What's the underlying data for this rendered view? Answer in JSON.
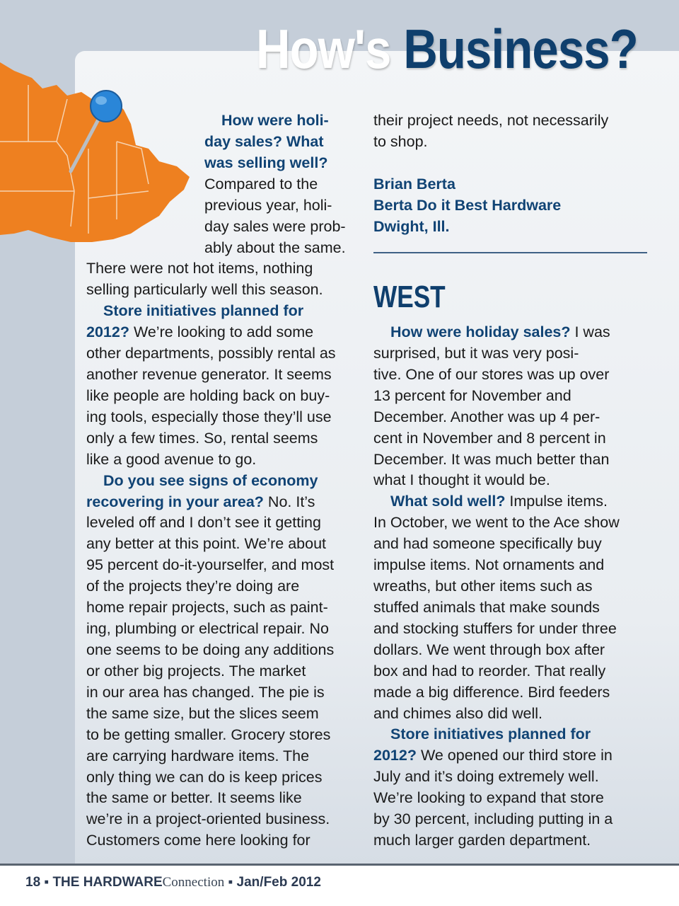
{
  "title": {
    "part1": "How's",
    "part2": "Business?"
  },
  "colors": {
    "accent": "#104374",
    "map": "#ee8020",
    "pin": "#2a86d8",
    "background": "#c5ced9"
  },
  "map_icon": "midwest-map-with-pin",
  "left_column": [
    {
      "indent": 2,
      "segs": [
        {
          "t": "How were holi-",
          "q": true
        }
      ]
    },
    {
      "indent": 1,
      "segs": [
        {
          "t": "day sales? What",
          "q": true
        }
      ]
    },
    {
      "indent": 1,
      "segs": [
        {
          "t": "was selling well?",
          "q": true
        }
      ]
    },
    {
      "indent": 1,
      "segs": [
        {
          "t": "Compared to the"
        }
      ]
    },
    {
      "indent": 1,
      "segs": [
        {
          "t": "previous year, holi-"
        }
      ]
    },
    {
      "indent": 1,
      "segs": [
        {
          "t": "day sales were prob-"
        }
      ]
    },
    {
      "indent": 1,
      "segs": [
        {
          "t": "ably about the same."
        }
      ]
    },
    {
      "segs": [
        {
          "t": "There were not hot items, nothing"
        }
      ]
    },
    {
      "segs": [
        {
          "t": "selling particularly well this season."
        }
      ]
    },
    {
      "indent": 3,
      "segs": [
        {
          "t": "Store initiatives planned for",
          "q": true
        }
      ]
    },
    {
      "segs": [
        {
          "t": "2012?",
          "q": true
        },
        {
          "t": " We’re looking to add some"
        }
      ]
    },
    {
      "segs": [
        {
          "t": "other departments, possibly rental as"
        }
      ]
    },
    {
      "segs": [
        {
          "t": "another revenue generator. It seems"
        }
      ]
    },
    {
      "segs": [
        {
          "t": "like people are holding back on buy-"
        }
      ]
    },
    {
      "segs": [
        {
          "t": "ing tools, especially those they’ll use"
        }
      ]
    },
    {
      "segs": [
        {
          "t": "only a few times. So, rental seems"
        }
      ]
    },
    {
      "segs": [
        {
          "t": "like a good avenue to go."
        }
      ]
    },
    {
      "indent": 3,
      "segs": [
        {
          "t": "Do you see signs of economy",
          "q": true
        }
      ]
    },
    {
      "segs": [
        {
          "t": "recovering in your area?",
          "q": true
        },
        {
          "t": " No. It’s"
        }
      ]
    },
    {
      "segs": [
        {
          "t": "leveled off and I don’t see it getting"
        }
      ]
    },
    {
      "segs": [
        {
          "t": "any better at this point. We’re about"
        }
      ]
    },
    {
      "segs": [
        {
          "t": "95 percent do-it-yourselfer, and most"
        }
      ]
    },
    {
      "segs": [
        {
          "t": "of the projects they’re doing are"
        }
      ]
    },
    {
      "segs": [
        {
          "t": "home repair projects, such as paint-"
        }
      ]
    },
    {
      "segs": [
        {
          "t": "ing, plumbing or electrical repair. No"
        }
      ]
    },
    {
      "segs": [
        {
          "t": "one seems to be doing any additions"
        }
      ]
    },
    {
      "segs": [
        {
          "t": "or other big projects. The market"
        }
      ]
    },
    {
      "segs": [
        {
          "t": "in our area has changed. The pie is"
        }
      ]
    },
    {
      "segs": [
        {
          "t": "the same size, but the slices seem"
        }
      ]
    },
    {
      "segs": [
        {
          "t": "to be getting smaller. Grocery stores"
        }
      ]
    },
    {
      "segs": [
        {
          "t": "are carrying hardware items. The"
        }
      ]
    },
    {
      "segs": [
        {
          "t": "only thing we can do is keep prices"
        }
      ]
    },
    {
      "segs": [
        {
          "t": "the same or better. It seems like"
        }
      ]
    },
    {
      "segs": [
        {
          "t": "we’re in a project-oriented business."
        }
      ]
    },
    {
      "segs": [
        {
          "t": "Customers come here looking for"
        }
      ]
    }
  ],
  "right_top": [
    {
      "segs": [
        {
          "t": "their project needs, not necessarily"
        }
      ]
    },
    {
      "segs": [
        {
          "t": "to shop."
        }
      ]
    }
  ],
  "signature": [
    {
      "segs": [
        {
          "t": "Brian Berta",
          "q": true
        }
      ]
    },
    {
      "segs": [
        {
          "t": "Berta Do it Best Hardware",
          "q": true
        }
      ]
    },
    {
      "segs": [
        {
          "t": "Dwight, Ill.",
          "q": true
        }
      ]
    }
  ],
  "section_heading": "WEST",
  "right_bottom": [
    {
      "indent": 3,
      "segs": [
        {
          "t": "How were holiday sales?",
          "q": true
        },
        {
          "t": " I was"
        }
      ]
    },
    {
      "segs": [
        {
          "t": "surprised, but it was very posi-"
        }
      ]
    },
    {
      "segs": [
        {
          "t": "tive. One of our stores was up over"
        }
      ]
    },
    {
      "segs": [
        {
          "t": "13 percent for November and"
        }
      ]
    },
    {
      "segs": [
        {
          "t": "December. Another was up 4 per-"
        }
      ]
    },
    {
      "segs": [
        {
          "t": "cent in November and 8 percent in"
        }
      ]
    },
    {
      "segs": [
        {
          "t": "December. It was much better than"
        }
      ]
    },
    {
      "segs": [
        {
          "t": "what I thought it would be."
        }
      ]
    },
    {
      "indent": 3,
      "segs": [
        {
          "t": "What sold well?",
          "q": true
        },
        {
          "t": " Impulse items."
        }
      ]
    },
    {
      "segs": [
        {
          "t": "In October, we went to the Ace show"
        }
      ]
    },
    {
      "segs": [
        {
          "t": "and had someone specifically buy"
        }
      ]
    },
    {
      "segs": [
        {
          "t": "impulse items. Not ornaments and"
        }
      ]
    },
    {
      "segs": [
        {
          "t": "wreaths, but other items such as"
        }
      ]
    },
    {
      "segs": [
        {
          "t": "stuffed animals that make sounds"
        }
      ]
    },
    {
      "segs": [
        {
          "t": "and stocking stuffers for under three"
        }
      ]
    },
    {
      "segs": [
        {
          "t": "dollars. We went through box after"
        }
      ]
    },
    {
      "segs": [
        {
          "t": "box and had to reorder. That really"
        }
      ]
    },
    {
      "segs": [
        {
          "t": "made a big difference. Bird feeders"
        }
      ]
    },
    {
      "segs": [
        {
          "t": "and chimes also did well."
        }
      ]
    },
    {
      "indent": 3,
      "segs": [
        {
          "t": "Store initiatives planned for",
          "q": true
        }
      ]
    },
    {
      "segs": [
        {
          "t": "2012?",
          "q": true
        },
        {
          "t": " We opened our third store in"
        }
      ]
    },
    {
      "segs": [
        {
          "t": "July and it’s doing extremely well."
        }
      ]
    },
    {
      "segs": [
        {
          "t": "We’re looking to expand that store"
        }
      ]
    },
    {
      "segs": [
        {
          "t": "by 30 percent, including putting in a"
        }
      ]
    },
    {
      "segs": [
        {
          "t": "much larger garden department."
        }
      ]
    }
  ],
  "footer": {
    "page": "18",
    "pub_bold": "THE HARDWARE",
    "pub_light": "Connection",
    "issue": "Jan/Feb 2012",
    "sep": "▪"
  }
}
